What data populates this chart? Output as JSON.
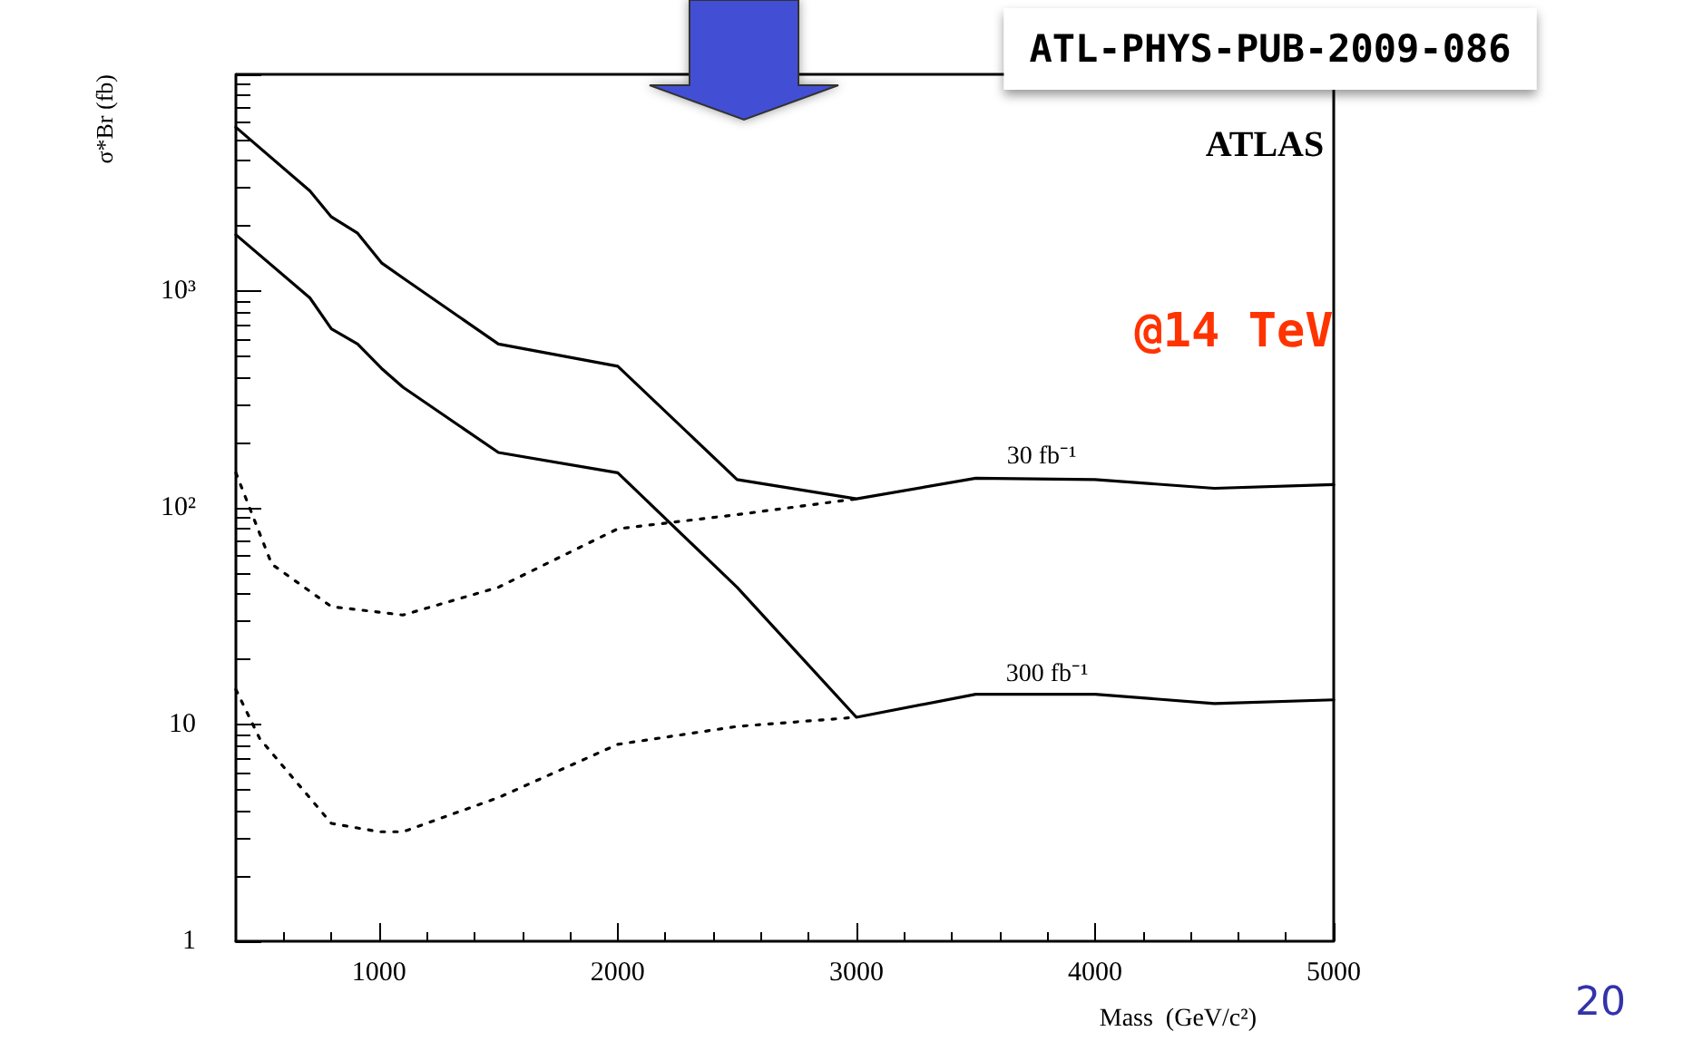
{
  "chart_data": {
    "type": "line",
    "xlabel": "Mass  (GeV/c²)",
    "ylabel": "σ*Br (fb)",
    "log": "y",
    "grid": false,
    "marker": "none",
    "xlim": [
      400,
      5000
    ],
    "xticks": [
      1000,
      2000,
      3000,
      4000,
      5000
    ],
    "ylim": [
      1,
      10000
    ],
    "yticks": [
      1,
      10,
      {
        "value": 100,
        "label": "10²"
      },
      {
        "value": 1000,
        "label": "10³"
      },
      {
        "value": 10000,
        "label": null
      }
    ],
    "series": [
      {
        "color": "#000000",
        "line_style": "solid",
        "x": [
          400,
          710,
          800,
          910,
          1010,
          1100,
          1500,
          2000,
          2500,
          3000,
          3500,
          4000,
          4500,
          5000
        ],
        "values": [
          5700,
          2900,
          2200,
          1850,
          1350,
          1150,
          570,
          450,
          135,
          110,
          137,
          135,
          123,
          128
        ]
      },
      {
        "color": "#000000",
        "line_style": "solid",
        "x": [
          400,
          710,
          800,
          910,
          1010,
          1100,
          1500,
          2000,
          2500,
          3000,
          3500,
          4000,
          4500,
          5000
        ],
        "values": [
          1820,
          930,
          670,
          570,
          440,
          360,
          180,
          145,
          43,
          10.8,
          13.8,
          13.8,
          12.5,
          13
        ]
      },
      {
        "color": "#000000",
        "line_style": "dotted",
        "x": [
          400,
          550,
          800,
          1000,
          1100,
          1500,
          2000,
          2500,
          3000
        ],
        "values": [
          145,
          55,
          35,
          33,
          32,
          43,
          80,
          93,
          110
        ]
      },
      {
        "color": "#000000",
        "line_style": "dotted",
        "x": [
          400,
          500,
          800,
          1000,
          1100,
          1500,
          2000,
          2500,
          3000
        ],
        "values": [
          14.5,
          8.6,
          3.5,
          3.2,
          3.2,
          4.6,
          8.1,
          9.8,
          10.8
        ]
      }
    ],
    "annotations": [
      "30 fb⁻¹",
      "300 fb⁻¹",
      "ATL-PHYS-PUB-2009-086",
      "ATLAS",
      "@14 TeV",
      "20"
    ]
  }
}
